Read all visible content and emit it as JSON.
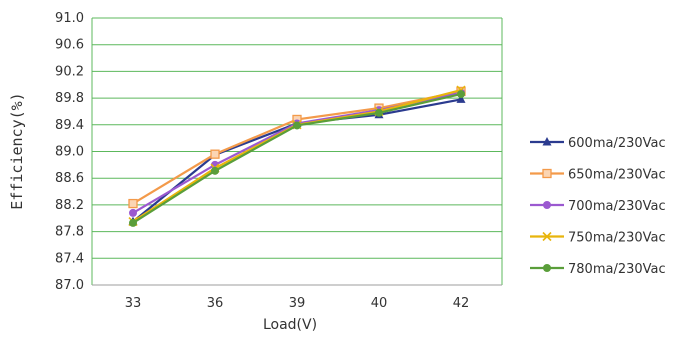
{
  "chart_data": {
    "type": "line",
    "title": "",
    "xlabel": "Load(V)",
    "ylabel": "Efficiency(%)",
    "categories": [
      "33",
      "36",
      "39",
      "40",
      "42"
    ],
    "y_ticks": [
      "87.0",
      "87.4",
      "87.8",
      "88.2",
      "88.6",
      "89.0",
      "89.4",
      "89.8",
      "90.2",
      "90.6",
      "91.0"
    ],
    "ylim": [
      87.0,
      91.0
    ],
    "grid": "horizontal",
    "plot_background": "#ffffff",
    "gridline_color": "#5cb85c",
    "legend_position": "right",
    "series": [
      {
        "name": "600ma/230Vac",
        "marker": "triangle",
        "color": "#2b3b8f",
        "values": [
          87.95,
          88.95,
          89.42,
          89.55,
          89.78
        ]
      },
      {
        "name": "650ma/230Vac",
        "marker": "square",
        "color": "#f39a4a",
        "values": [
          88.22,
          88.96,
          89.48,
          89.65,
          89.9
        ]
      },
      {
        "name": "700ma/230Vac",
        "marker": "circle",
        "color": "#9b59d0",
        "values": [
          88.08,
          88.8,
          89.42,
          89.62,
          89.88
        ]
      },
      {
        "name": "750ma/230Vac",
        "marker": "x",
        "color": "#e8b50c",
        "values": [
          87.95,
          88.75,
          89.4,
          89.6,
          89.92
        ]
      },
      {
        "name": "780ma/230Vac",
        "marker": "circle",
        "color": "#5a9e3a",
        "values": [
          87.93,
          88.71,
          89.39,
          89.58,
          89.86
        ]
      }
    ]
  }
}
